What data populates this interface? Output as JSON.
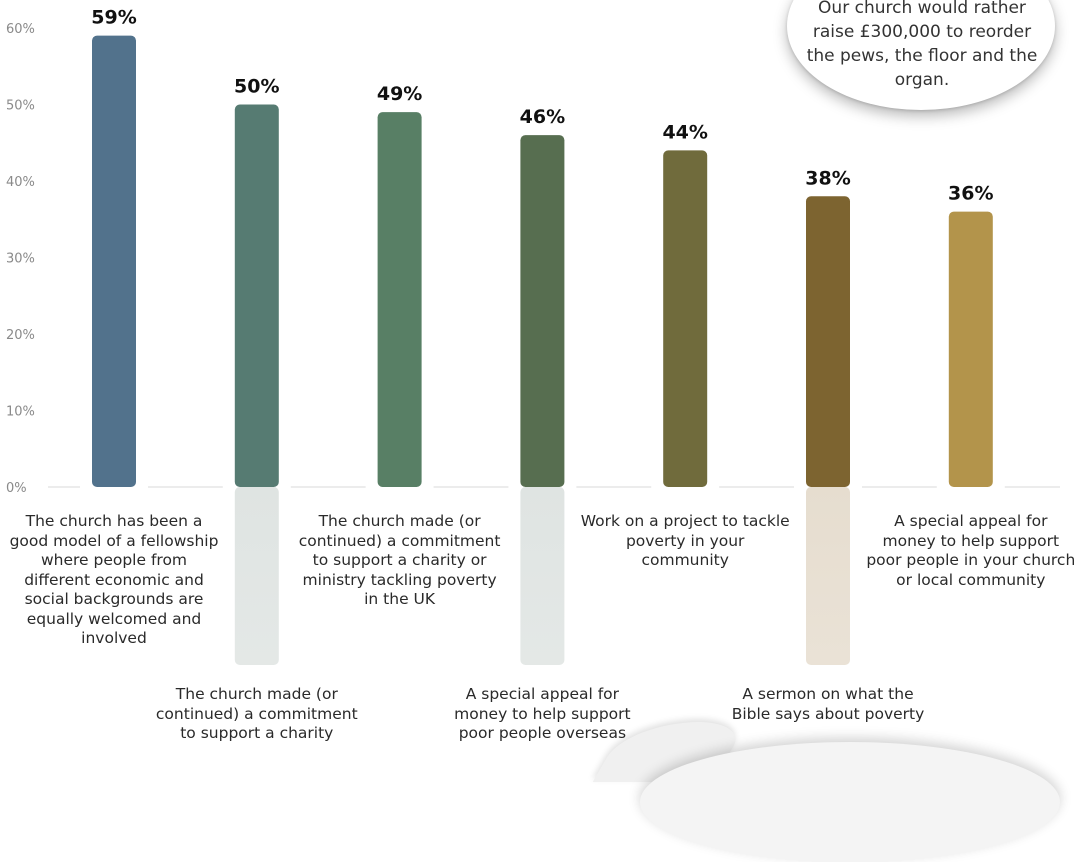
{
  "chart_data": {
    "type": "bar",
    "categories": [
      "The church has been a good model of a fellowship where people from different economic and social backgrounds are equally welcomed and involved",
      "The church made (or continued) a commitment to support a charity",
      "The church made (or continued) a commitment to support a charity or ministry tackling poverty in the UK",
      "A special appeal for money to help support poor people overseas",
      "Work on a project to tackle poverty in your community",
      "A sermon on what the Bible says about poverty",
      "A special appeal for money to help support poor people in your church or local community"
    ],
    "values": [
      59,
      50,
      49,
      46,
      44,
      38,
      36
    ],
    "value_labels": [
      "59%",
      "50%",
      "49%",
      "46%",
      "44%",
      "38%",
      "36%"
    ],
    "colors": [
      "#52728c",
      "#567b72",
      "#587f65",
      "#576e50",
      "#706b3c",
      "#7d6430",
      "#b3944b"
    ],
    "label_fade_colors": [
      "#dfe4e2",
      "#dfe4e2",
      "#dfe4e2",
      "#dfe4e2",
      "#dfe4e2",
      "#e6ddcf",
      "#e6ddcf"
    ],
    "label_position": [
      "above",
      "below",
      "above",
      "below",
      "above",
      "below",
      "above"
    ],
    "y_ticks": [
      "0%",
      "10%",
      "20%",
      "30%",
      "40%",
      "50%",
      "60%"
    ],
    "ylim": [
      0,
      60
    ],
    "grid": false,
    "title": "",
    "xlabel": "",
    "ylabel": ""
  },
  "callout": {
    "text": "Our church would rather raise £300,000 to reorder the pews, the floor and the organ."
  }
}
